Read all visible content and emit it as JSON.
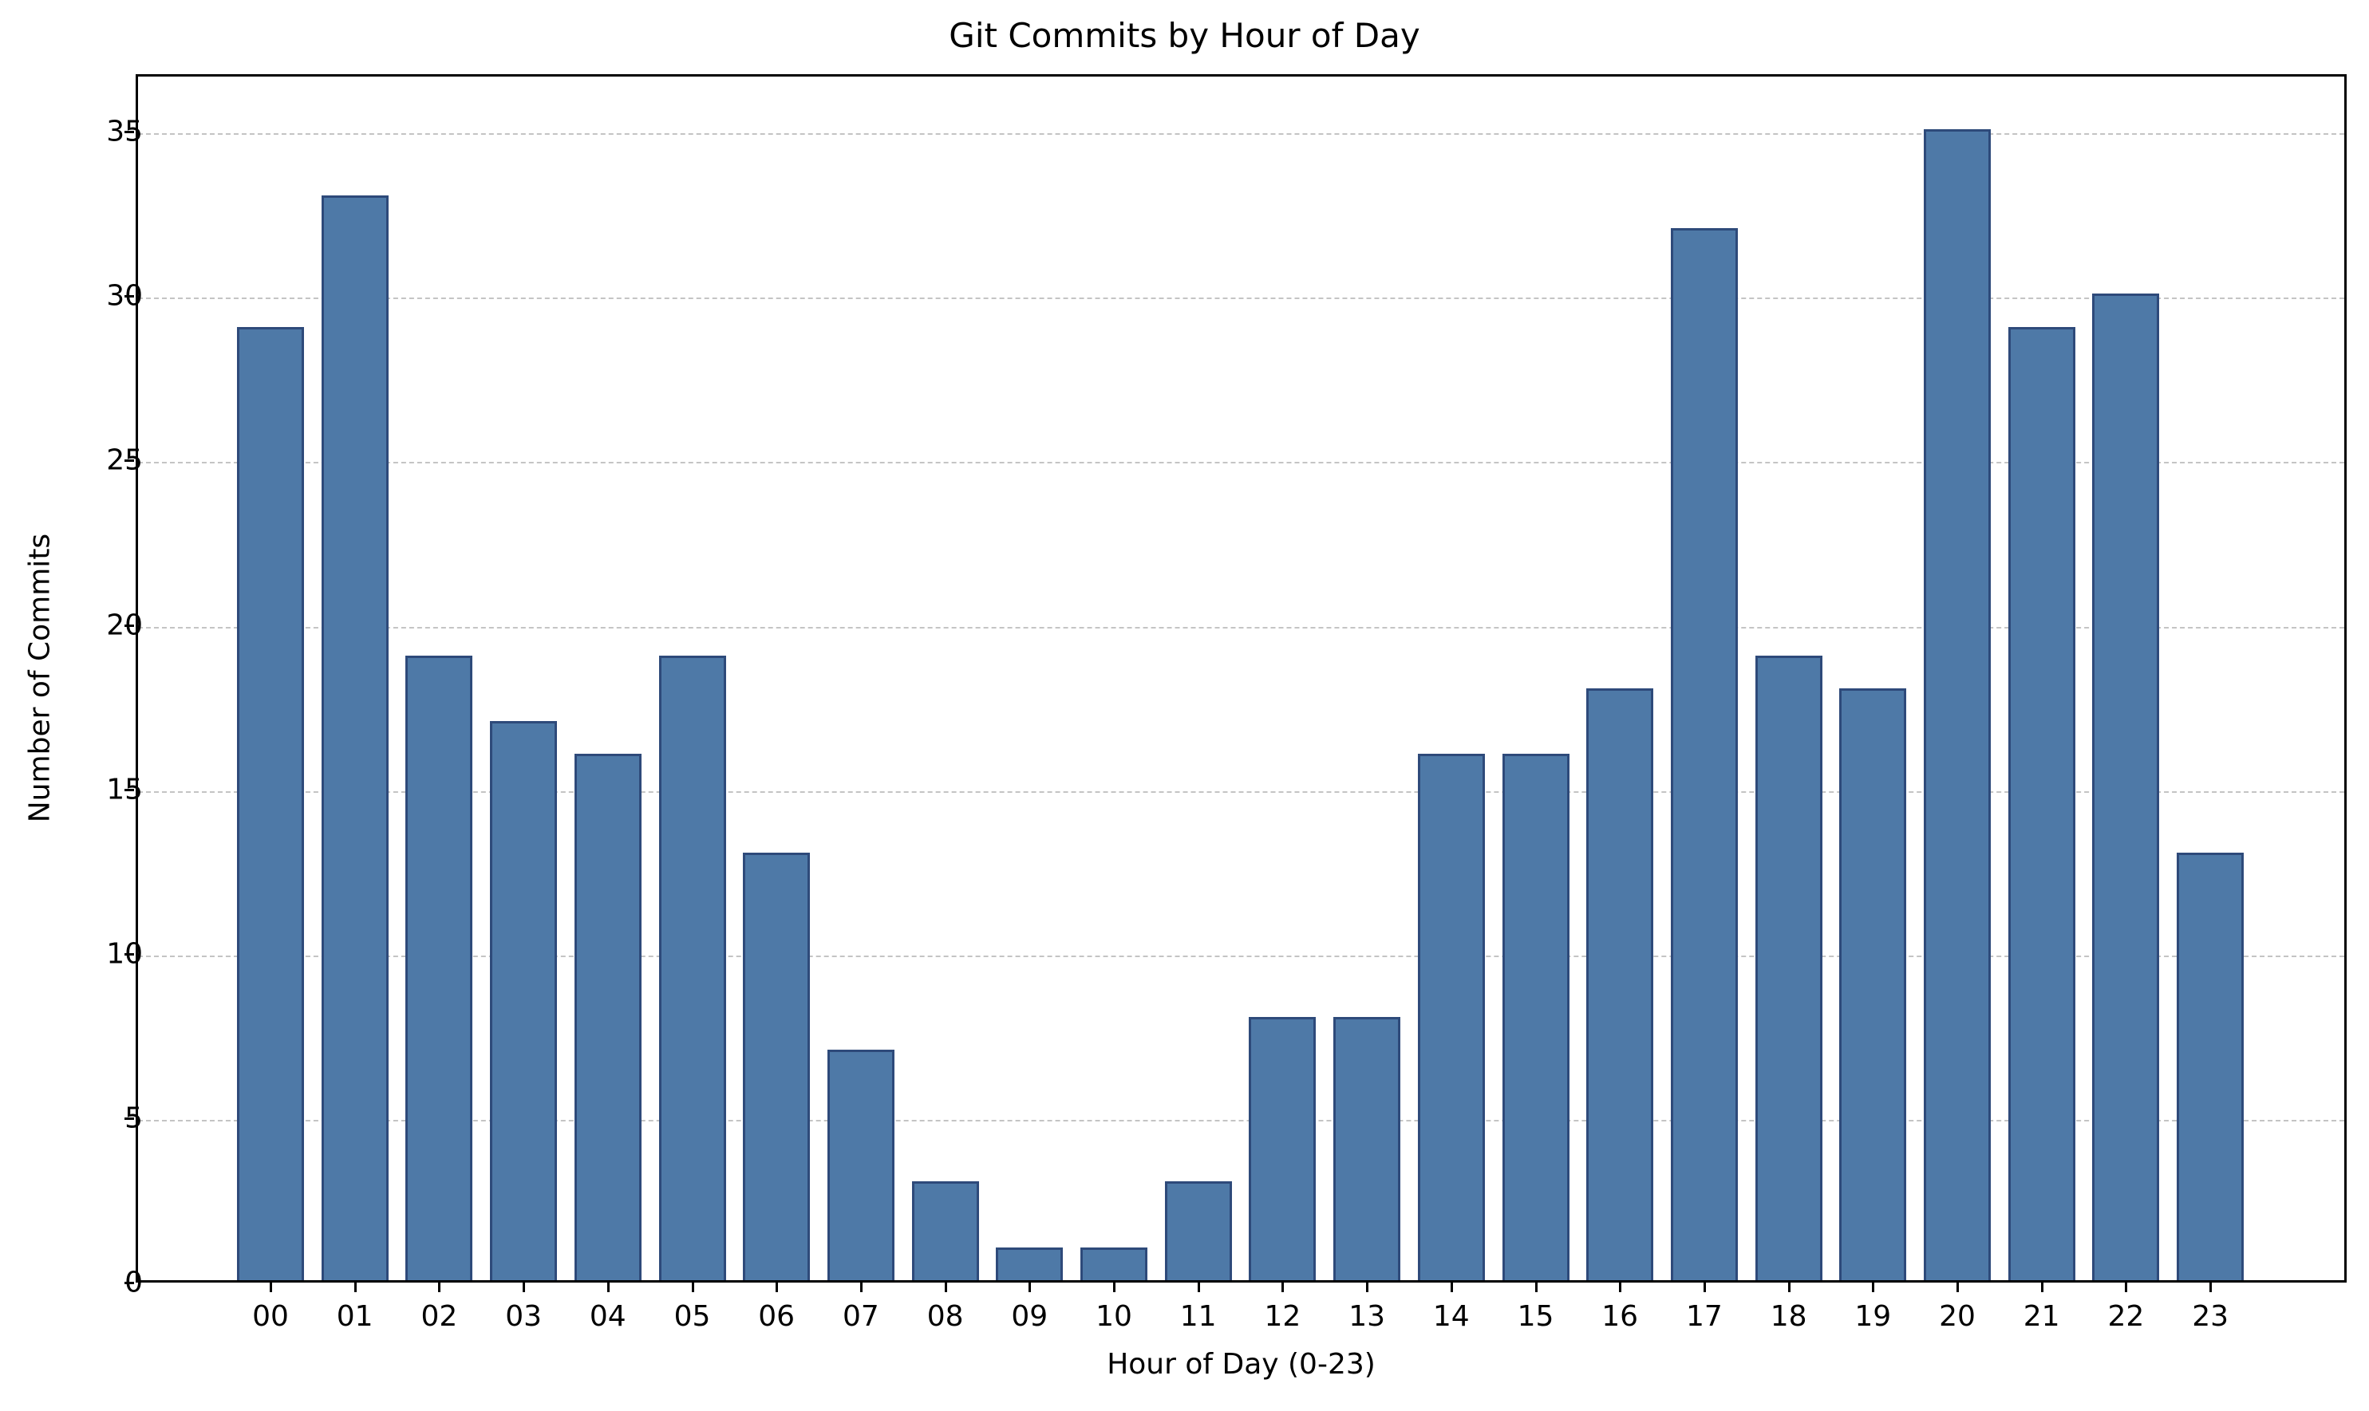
{
  "chart_data": {
    "type": "bar",
    "title": "Git Commits by Hour of Day",
    "xlabel": "Hour of Day (0-23)",
    "ylabel": "Number of Commits",
    "categories": [
      "00",
      "01",
      "02",
      "03",
      "04",
      "05",
      "06",
      "07",
      "08",
      "09",
      "10",
      "11",
      "12",
      "13",
      "14",
      "15",
      "16",
      "17",
      "18",
      "19",
      "20",
      "21",
      "22",
      "23"
    ],
    "values": [
      29,
      33,
      19,
      17,
      16,
      19,
      13,
      7,
      3,
      1,
      1,
      3,
      8,
      8,
      16,
      16,
      18,
      32,
      19,
      18,
      35,
      29,
      30,
      13
    ],
    "ylim": [
      0,
      36.75
    ],
    "yticks": [
      0,
      5,
      10,
      15,
      20,
      25,
      30,
      35
    ],
    "grid": {
      "axis": "y",
      "style": "dashed"
    },
    "legend": null,
    "colors": {
      "bar_fill": "#4e79a7",
      "bar_edge": "#2e4a7a",
      "grid": "#c4c4c4"
    }
  }
}
